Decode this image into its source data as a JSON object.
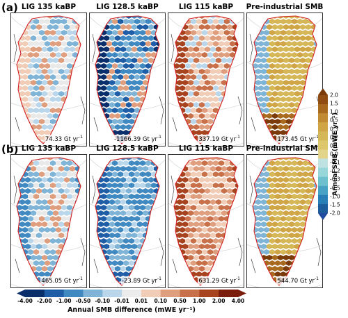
{
  "row_labels": [
    "(a)",
    "(b)"
  ],
  "rows": [
    {
      "panels": [
        {
          "title": "LIG 135 kaBP",
          "value": "74.33 Gt yr",
          "unit_sup": "-1",
          "pattern": "a-lig135"
        },
        {
          "title": "LIG 128.5 kaBP",
          "value": "-1166.39 Gt yr",
          "unit_sup": "-1",
          "pattern": "a-lig128"
        },
        {
          "title": "LIG 115 kaBP",
          "value": "337.19 Gt yr",
          "unit_sup": "-1",
          "pattern": "a-lig115"
        },
        {
          "title": "Pre-industrial SMB",
          "value": "173.45 Gt yr",
          "unit_sup": "-1",
          "pattern": "pi"
        }
      ]
    },
    {
      "panels": [
        {
          "title": "LIG 135 kaBP",
          "value": "465.05 Gt yr",
          "unit_sup": "-1",
          "pattern": "b-lig135"
        },
        {
          "title": "LIG 128.5 kaBP",
          "value": "-23.89 Gt yr",
          "unit_sup": "-1",
          "pattern": "b-lig128"
        },
        {
          "title": "LIG 115 kaBP",
          "value": "631.29 Gt yr",
          "unit_sup": "-1",
          "pattern": "b-lig115"
        },
        {
          "title": "Pre-industrial SMB",
          "value": "544.70 Gt yr",
          "unit_sup": "-1",
          "pattern": "pi"
        }
      ]
    }
  ],
  "colorbar_vertical": {
    "title": "Annual SMB (mWE yr⁻¹)",
    "ticks": [
      "2.0",
      "1.5",
      "1.0",
      "0.5",
      "0.3",
      "0.2",
      "0.1",
      "0.0",
      "-0.1",
      "-0.2",
      "-0.3",
      "-0.5",
      "-1.0",
      "-1.5",
      "-2.0"
    ],
    "colors": [
      "#7a3a0a",
      "#8f4d14",
      "#a86a1e",
      "#c08b33",
      "#cfa545",
      "#d6b757",
      "#ddc66c",
      "#e3d48b",
      "#bfe3e3",
      "#99d6da",
      "#6fc0cf",
      "#47a2c4",
      "#2a80b6",
      "#1e5d9c",
      "#1f4aa0"
    ]
  },
  "colorbar_horizontal": {
    "title": "Annual SMB difference (mWE yr⁻¹)",
    "ticks": [
      "-4.00",
      "-2.00",
      "-1.00",
      "-0.50",
      "-0.10",
      "-0.01",
      "0.01",
      "0.10",
      "0.50",
      "1.00",
      "2.00",
      "4.00"
    ],
    "colors": [
      "#0b2f6b",
      "#1f5ea6",
      "#4189c1",
      "#7fb4d6",
      "#b9d6ea",
      "#ececec",
      "#f1cdb7",
      "#df9f7f",
      "#c8704a",
      "#a8431f",
      "#7a1d0c"
    ]
  }
}
